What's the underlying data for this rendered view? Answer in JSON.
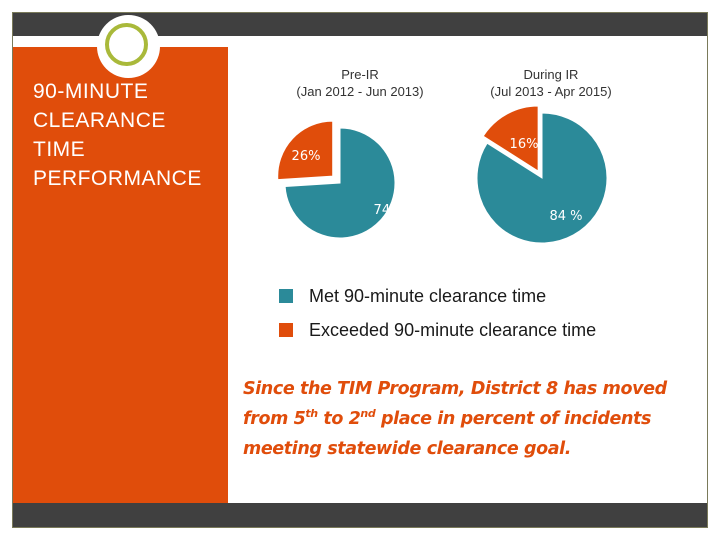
{
  "slide": {
    "title_lines": [
      "90-MINUTE",
      "CLEARANCE",
      "TIME",
      "PERFORMANCE"
    ]
  },
  "colors": {
    "met": "#2b8a99",
    "exceeded": "#e04d0b",
    "sidebar": "#e04d0b",
    "bars": "#404040",
    "ring": "#a9b93a"
  },
  "chart_data": {
    "type": "pie",
    "categories": [
      "Met 90-minute clearance time",
      "Exceeded 90-minute clearance time"
    ],
    "series": [
      {
        "name": "Pre-IR",
        "subtitle": "(Jan 2012 - Jun 2013)",
        "values": [
          74,
          26
        ],
        "labels": [
          "74%",
          "26%"
        ]
      },
      {
        "name": "During IR",
        "subtitle": "(Jul 2013 - Apr 2015)",
        "values": [
          84,
          16
        ],
        "labels": [
          "84 %",
          "16%"
        ]
      }
    ],
    "legend_position": "bottom"
  },
  "note": {
    "prefix": "Since the TIM Program, District 8 has moved from 5",
    "sup1": "th",
    "middle": " to 2",
    "sup2": "nd",
    "suffix": " place  in percent of incidents meeting statewide clearance goal."
  }
}
